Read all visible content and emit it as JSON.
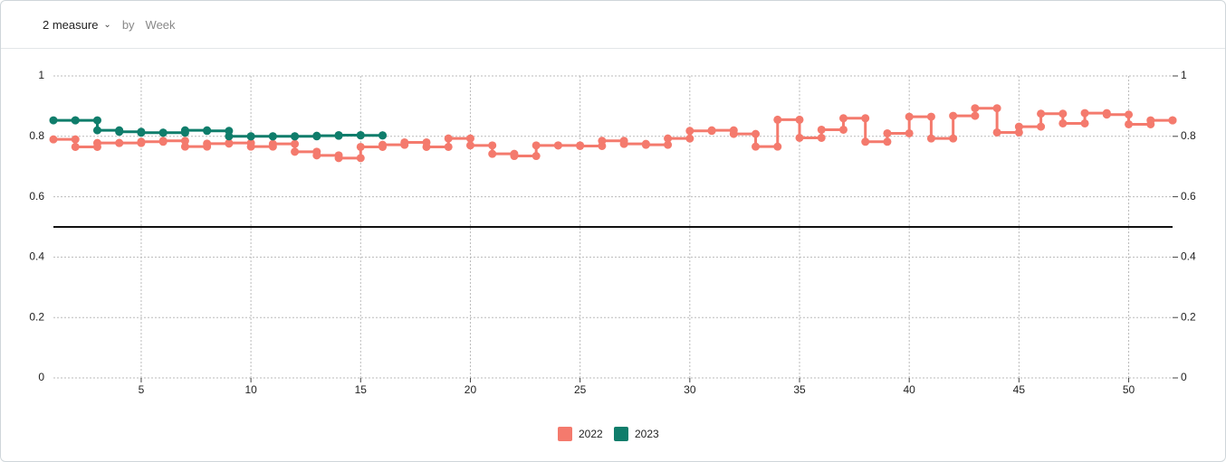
{
  "header": {
    "measure": "2 measure",
    "by": "by",
    "group": "Week"
  },
  "chart_data": {
    "type": "step",
    "xlim": [
      1,
      52
    ],
    "xticks": [
      5,
      10,
      15,
      20,
      25,
      30,
      35,
      40,
      45,
      50
    ],
    "ylim": [
      0,
      1
    ],
    "yticks": [
      0,
      0.2,
      0.4,
      0.6,
      0.8,
      1
    ],
    "y2lim": [
      0,
      1
    ],
    "y2ticks": [
      0,
      0.2,
      0.4,
      0.6,
      0.8,
      1
    ],
    "grid": true,
    "reference_line": 0.5,
    "legend": "bottom",
    "series": [
      {
        "name": "2022",
        "color": "#f47a6d",
        "x": [
          1,
          2,
          3,
          4,
          5,
          6,
          7,
          8,
          9,
          10,
          11,
          12,
          13,
          14,
          15,
          16,
          17,
          18,
          19,
          20,
          21,
          22,
          23,
          24,
          25,
          26,
          27,
          28,
          29,
          30,
          31,
          32,
          33,
          34,
          35,
          36,
          37,
          38,
          39,
          40,
          41,
          42,
          43,
          44,
          45,
          46,
          47,
          48,
          49,
          50,
          51,
          52
        ],
        "values": [
          0.79,
          0.765,
          0.778,
          0.778,
          0.782,
          0.785,
          0.766,
          0.776,
          0.778,
          0.766,
          0.775,
          0.749,
          0.737,
          0.728,
          0.765,
          0.772,
          0.78,
          0.765,
          0.793,
          0.77,
          0.742,
          0.735,
          0.77,
          0.77,
          0.768,
          0.785,
          0.775,
          0.772,
          0.793,
          0.818,
          0.82,
          0.808,
          0.766,
          0.855,
          0.795,
          0.822,
          0.86,
          0.782,
          0.81,
          0.865,
          0.793,
          0.868,
          0.893,
          0.813,
          0.832,
          0.875,
          0.843,
          0.877,
          0.872,
          0.84,
          0.853,
          0.853
        ]
      },
      {
        "name": "2023",
        "color": "#0f7d6b",
        "x": [
          1,
          2,
          3,
          4,
          5,
          6,
          7,
          8,
          9,
          10,
          11,
          12,
          13,
          14,
          15,
          16
        ],
        "values": [
          0.853,
          0.853,
          0.82,
          0.815,
          0.812,
          0.812,
          0.82,
          0.818,
          0.8,
          0.8,
          0.8,
          0.8,
          0.802,
          0.804,
          0.803,
          0.803
        ]
      }
    ]
  }
}
